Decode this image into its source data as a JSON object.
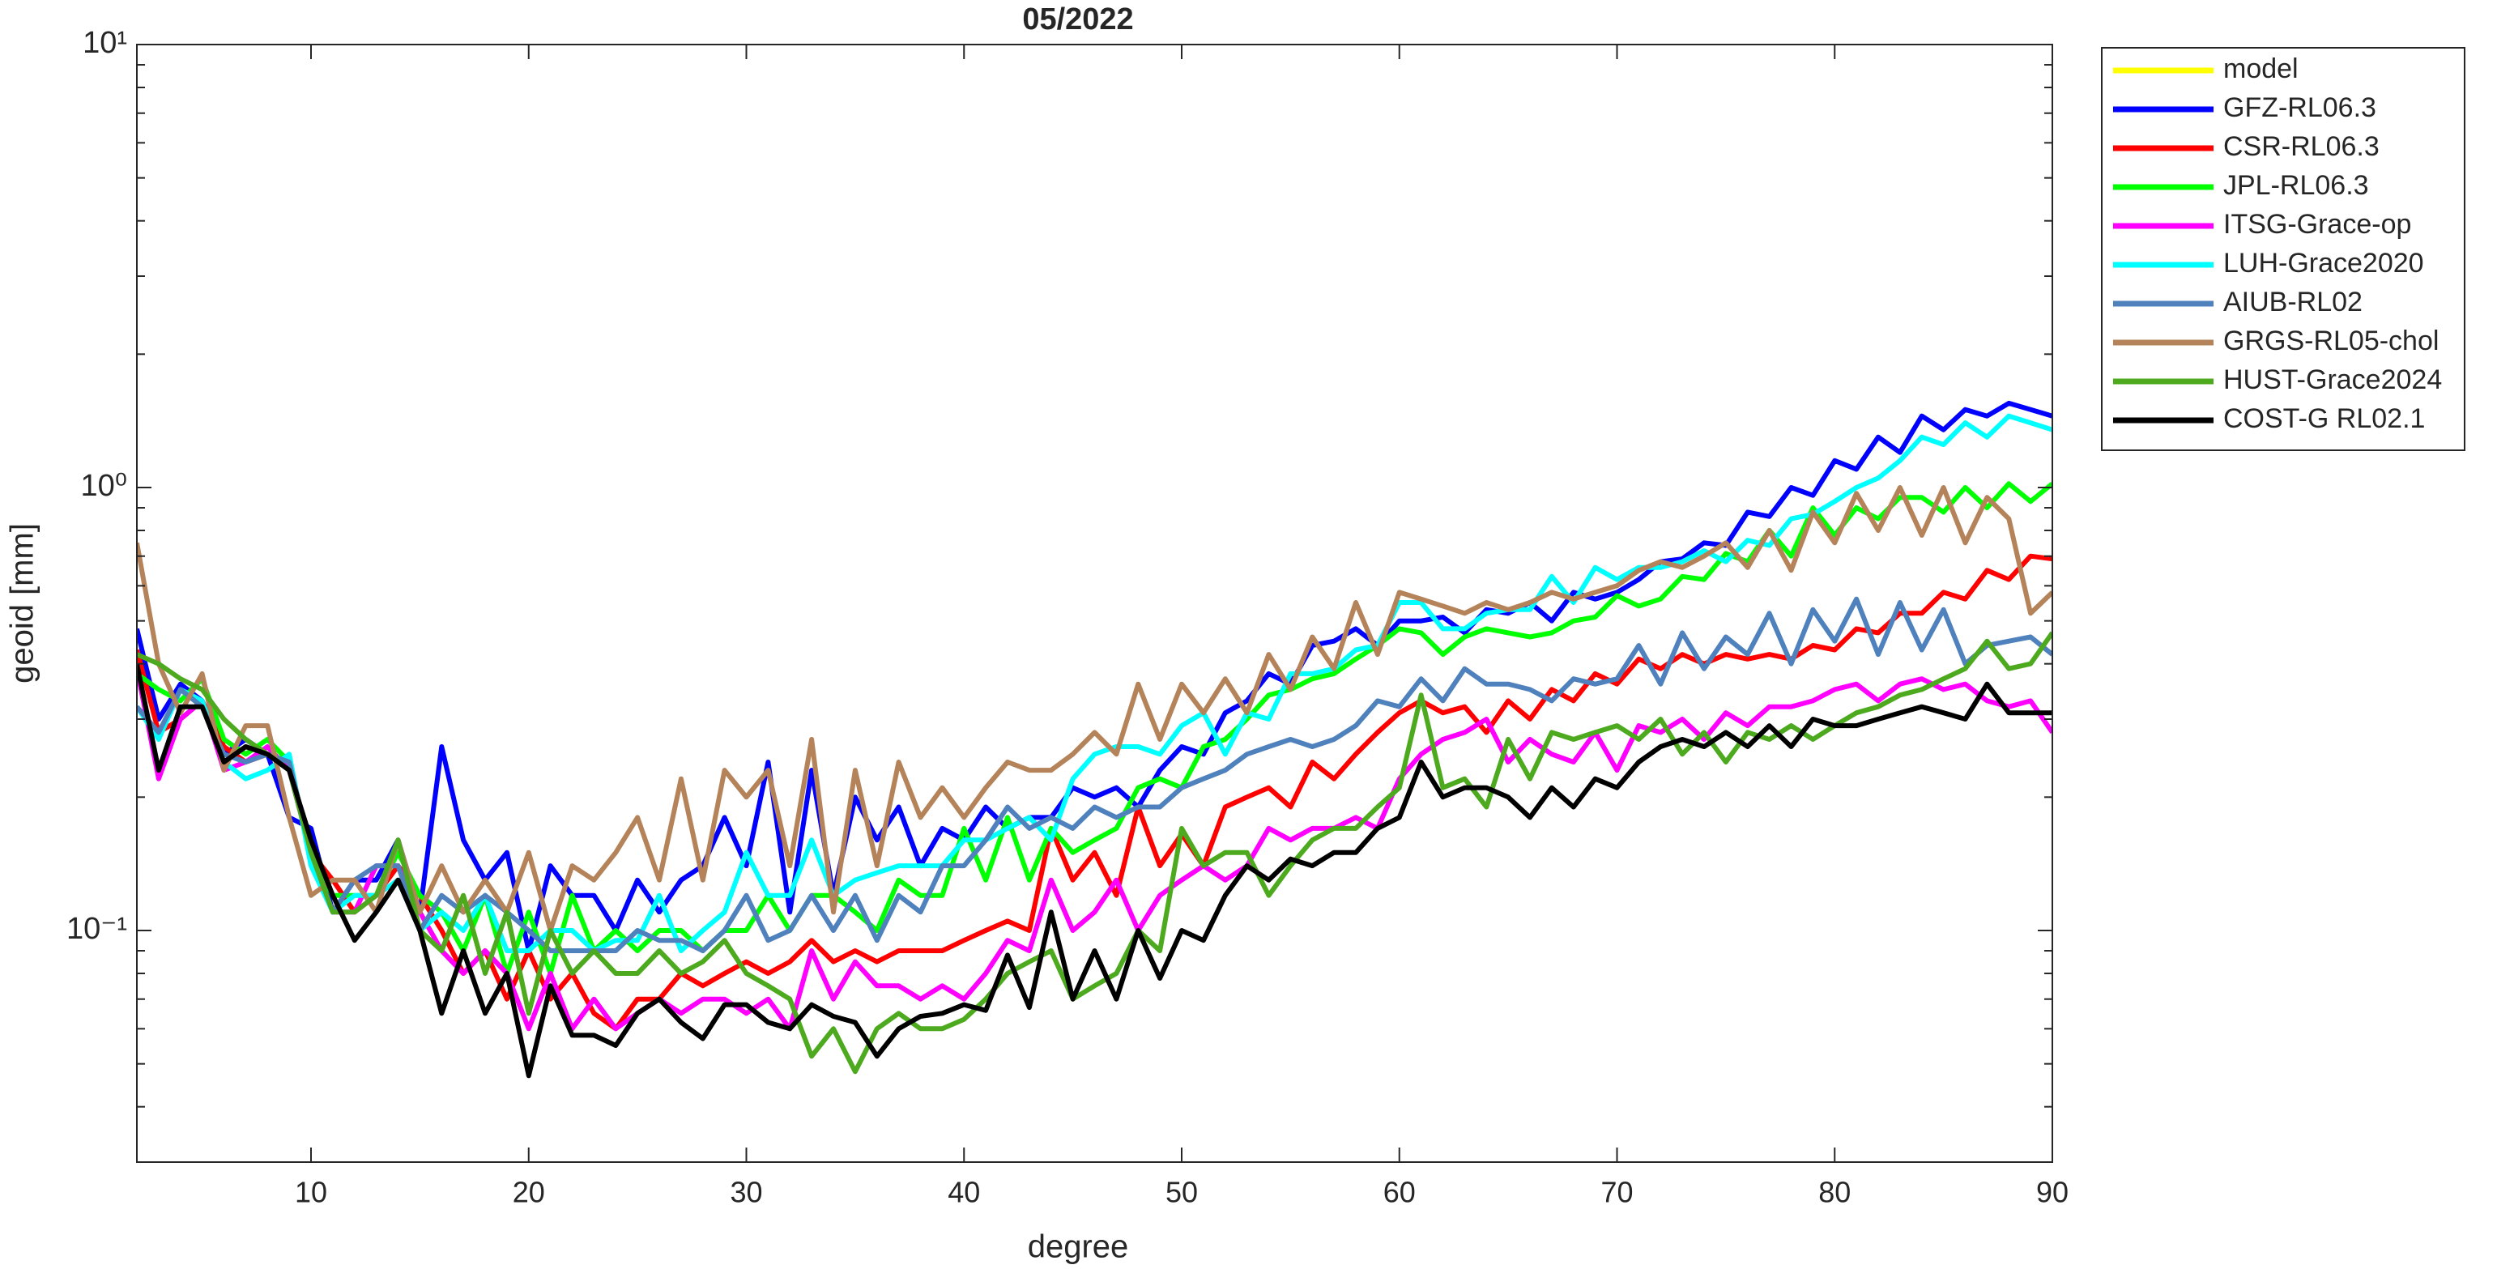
{
  "chart_data": {
    "type": "line",
    "title": "05/2022",
    "xlabel": "degree",
    "ylabel": "geoid [mm]",
    "log_y": true,
    "grid": false,
    "legend": "outside-right",
    "xlim": [
      2,
      90
    ],
    "xticks": [
      10,
      20,
      30,
      40,
      50,
      60,
      70,
      80,
      90
    ],
    "ylim": [
      0.03,
      10
    ],
    "yticks": [
      {
        "value": 0.1,
        "label": "10⁻¹"
      },
      {
        "value": 1,
        "label": "10⁰"
      },
      {
        "value": 10,
        "label": "10¹"
      }
    ],
    "yminorticks": [
      0.04,
      0.05,
      0.06,
      0.07,
      0.08,
      0.09,
      0.2,
      0.3,
      0.4,
      0.5,
      0.6,
      0.7,
      0.8,
      0.9,
      2,
      3,
      4,
      5,
      6,
      7,
      8,
      9
    ],
    "x": [
      2,
      3,
      4,
      5,
      6,
      7,
      8,
      9,
      10,
      11,
      12,
      13,
      14,
      15,
      16,
      17,
      18,
      19,
      20,
      21,
      22,
      23,
      24,
      25,
      26,
      27,
      28,
      29,
      30,
      31,
      32,
      33,
      34,
      35,
      36,
      37,
      38,
      39,
      40,
      41,
      42,
      43,
      44,
      45,
      46,
      47,
      48,
      49,
      50,
      51,
      52,
      53,
      54,
      55,
      56,
      57,
      58,
      59,
      60,
      61,
      62,
      63,
      64,
      65,
      66,
      67,
      68,
      69,
      70,
      71,
      72,
      73,
      74,
      75,
      76,
      77,
      78,
      79,
      80,
      81,
      82,
      83,
      84,
      85,
      86,
      87,
      88,
      89,
      90
    ],
    "series": [
      {
        "name": "model",
        "color": "#ffff00",
        "values": [
          null,
          null,
          null,
          null,
          null,
          null,
          null,
          null,
          null,
          null,
          null,
          null,
          null,
          null,
          null,
          null,
          null,
          null,
          null,
          null,
          null,
          null,
          null,
          null,
          null,
          null,
          null,
          null,
          null,
          null,
          null,
          null,
          null,
          null,
          null,
          null,
          null,
          null,
          null,
          null,
          null,
          null,
          null,
          null,
          null,
          null,
          null,
          null,
          null,
          null,
          null,
          null,
          null,
          null,
          null,
          null,
          null,
          null,
          null,
          null,
          null,
          null,
          null,
          null,
          null,
          null,
          null,
          null,
          null,
          null,
          null,
          null,
          null,
          null,
          null,
          null,
          null,
          null,
          null,
          null,
          null,
          null,
          null,
          null,
          null,
          null,
          null,
          null,
          null
        ]
      },
      {
        "name": "GFZ-RL06.3",
        "color": "#0000ff",
        "values": [
          0.48,
          0.3,
          0.36,
          0.33,
          0.25,
          0.27,
          0.25,
          0.18,
          0.17,
          0.11,
          0.13,
          0.13,
          0.16,
          0.11,
          0.26,
          0.16,
          0.13,
          0.15,
          0.09,
          0.14,
          0.12,
          0.12,
          0.1,
          0.13,
          0.11,
          0.13,
          0.14,
          0.18,
          0.14,
          0.24,
          0.11,
          0.23,
          0.12,
          0.2,
          0.16,
          0.19,
          0.14,
          0.17,
          0.16,
          0.19,
          0.17,
          0.18,
          0.18,
          0.21,
          0.2,
          0.21,
          0.19,
          0.23,
          0.26,
          0.25,
          0.31,
          0.33,
          0.38,
          0.36,
          0.44,
          0.45,
          0.48,
          0.44,
          0.5,
          0.5,
          0.51,
          0.47,
          0.53,
          0.52,
          0.55,
          0.5,
          0.58,
          0.56,
          0.58,
          0.62,
          0.68,
          0.69,
          0.75,
          0.74,
          0.88,
          0.86,
          1.0,
          0.96,
          1.15,
          1.1,
          1.3,
          1.2,
          1.45,
          1.35,
          1.5,
          1.45,
          1.55,
          1.5,
          1.45
        ]
      },
      {
        "name": "CSR-RL06.3",
        "color": "#ff0000",
        "values": [
          0.43,
          0.28,
          0.3,
          0.33,
          0.26,
          0.24,
          0.25,
          0.24,
          0.15,
          0.13,
          0.11,
          0.12,
          0.14,
          0.12,
          0.1,
          0.08,
          0.09,
          0.07,
          0.09,
          0.07,
          0.08,
          0.065,
          0.06,
          0.07,
          0.07,
          0.08,
          0.075,
          0.08,
          0.085,
          0.08,
          0.085,
          0.095,
          0.085,
          0.09,
          0.085,
          0.09,
          0.09,
          0.09,
          0.095,
          0.1,
          0.105,
          0.1,
          0.17,
          0.13,
          0.15,
          0.12,
          0.19,
          0.14,
          0.165,
          0.14,
          0.19,
          0.2,
          0.21,
          0.19,
          0.24,
          0.22,
          0.25,
          0.28,
          0.31,
          0.33,
          0.31,
          0.32,
          0.28,
          0.33,
          0.3,
          0.35,
          0.33,
          0.38,
          0.36,
          0.41,
          0.39,
          0.42,
          0.4,
          0.42,
          0.41,
          0.42,
          0.41,
          0.44,
          0.43,
          0.48,
          0.47,
          0.52,
          0.52,
          0.58,
          0.56,
          0.65,
          0.62,
          0.7,
          0.69
        ]
      },
      {
        "name": "JPL-RL06.3",
        "color": "#00ff00",
        "values": [
          0.38,
          0.35,
          0.33,
          0.37,
          0.27,
          0.25,
          0.27,
          0.24,
          0.15,
          0.12,
          0.12,
          0.12,
          0.15,
          0.12,
          0.11,
          0.09,
          0.12,
          0.08,
          0.11,
          0.08,
          0.12,
          0.09,
          0.1,
          0.09,
          0.1,
          0.1,
          0.09,
          0.1,
          0.1,
          0.12,
          0.1,
          0.12,
          0.12,
          0.11,
          0.1,
          0.13,
          0.12,
          0.12,
          0.17,
          0.13,
          0.18,
          0.13,
          0.17,
          0.15,
          0.16,
          0.17,
          0.21,
          0.22,
          0.21,
          0.26,
          0.27,
          0.3,
          0.34,
          0.35,
          0.37,
          0.38,
          0.41,
          0.44,
          0.48,
          0.47,
          0.42,
          0.46,
          0.48,
          0.47,
          0.46,
          0.47,
          0.5,
          0.51,
          0.57,
          0.54,
          0.56,
          0.63,
          0.62,
          0.71,
          0.68,
          0.8,
          0.7,
          0.9,
          0.78,
          0.9,
          0.85,
          0.95,
          0.95,
          0.88,
          1.0,
          0.9,
          1.02,
          0.93,
          1.02
        ]
      },
      {
        "name": "ITSG-Grace-op",
        "color": "#ff00ff",
        "values": [
          0.39,
          0.22,
          0.3,
          0.33,
          0.23,
          0.24,
          0.26,
          0.23,
          0.15,
          0.11,
          0.11,
          0.14,
          0.14,
          0.11,
          0.09,
          0.08,
          0.09,
          0.08,
          0.06,
          0.08,
          0.06,
          0.07,
          0.06,
          0.065,
          0.07,
          0.065,
          0.07,
          0.07,
          0.065,
          0.07,
          0.06,
          0.09,
          0.07,
          0.085,
          0.075,
          0.075,
          0.07,
          0.075,
          0.07,
          0.08,
          0.095,
          0.09,
          0.13,
          0.1,
          0.11,
          0.13,
          0.1,
          0.12,
          0.13,
          0.14,
          0.13,
          0.14,
          0.17,
          0.16,
          0.17,
          0.17,
          0.18,
          0.17,
          0.22,
          0.25,
          0.27,
          0.28,
          0.3,
          0.24,
          0.27,
          0.25,
          0.24,
          0.28,
          0.23,
          0.29,
          0.28,
          0.3,
          0.27,
          0.31,
          0.29,
          0.32,
          0.32,
          0.33,
          0.35,
          0.36,
          0.33,
          0.36,
          0.37,
          0.35,
          0.36,
          0.33,
          0.32,
          0.33,
          0.28
        ]
      },
      {
        "name": "LUH-Grace2020",
        "color": "#00ffff",
        "values": [
          0.32,
          0.27,
          0.35,
          0.33,
          0.24,
          0.22,
          0.23,
          0.25,
          0.14,
          0.11,
          0.12,
          0.12,
          0.13,
          0.1,
          0.11,
          0.1,
          0.12,
          0.09,
          0.09,
          0.1,
          0.1,
          0.09,
          0.095,
          0.095,
          0.12,
          0.09,
          0.1,
          0.11,
          0.15,
          0.12,
          0.12,
          0.16,
          0.12,
          0.13,
          0.135,
          0.14,
          0.14,
          0.14,
          0.16,
          0.16,
          0.17,
          0.18,
          0.16,
          0.22,
          0.25,
          0.26,
          0.26,
          0.25,
          0.29,
          0.31,
          0.25,
          0.31,
          0.3,
          0.38,
          0.38,
          0.39,
          0.43,
          0.44,
          0.55,
          0.55,
          0.48,
          0.48,
          0.52,
          0.53,
          0.53,
          0.63,
          0.55,
          0.66,
          0.62,
          0.66,
          0.66,
          0.68,
          0.72,
          0.68,
          0.76,
          0.74,
          0.85,
          0.87,
          0.93,
          1.0,
          1.05,
          1.15,
          1.3,
          1.25,
          1.4,
          1.3,
          1.45,
          1.4,
          1.35
        ]
      },
      {
        "name": "AIUB-RL02",
        "color": "#4f81bd",
        "values": [
          0.32,
          0.28,
          0.35,
          0.32,
          0.25,
          0.24,
          0.25,
          0.24,
          0.15,
          0.11,
          0.13,
          0.14,
          0.14,
          0.1,
          0.12,
          0.11,
          0.12,
          0.11,
          0.1,
          0.09,
          0.09,
          0.09,
          0.09,
          0.1,
          0.095,
          0.095,
          0.09,
          0.1,
          0.12,
          0.095,
          0.1,
          0.12,
          0.1,
          0.12,
          0.095,
          0.12,
          0.11,
          0.14,
          0.14,
          0.16,
          0.19,
          0.17,
          0.18,
          0.17,
          0.19,
          0.18,
          0.19,
          0.19,
          0.21,
          0.22,
          0.23,
          0.25,
          0.26,
          0.27,
          0.26,
          0.27,
          0.29,
          0.33,
          0.32,
          0.37,
          0.33,
          0.39,
          0.36,
          0.36,
          0.35,
          0.33,
          0.37,
          0.36,
          0.37,
          0.44,
          0.36,
          0.47,
          0.39,
          0.46,
          0.42,
          0.52,
          0.4,
          0.53,
          0.45,
          0.56,
          0.42,
          0.55,
          0.43,
          0.53,
          0.4,
          0.44,
          0.45,
          0.46,
          0.42
        ]
      },
      {
        "name": "GRGS-RL05-chol",
        "color": "#b5835a",
        "values": [
          0.75,
          0.4,
          0.31,
          0.38,
          0.23,
          0.29,
          0.29,
          0.18,
          0.12,
          0.13,
          0.13,
          0.11,
          0.16,
          0.11,
          0.14,
          0.11,
          0.13,
          0.11,
          0.15,
          0.1,
          0.14,
          0.13,
          0.15,
          0.18,
          0.13,
          0.22,
          0.13,
          0.23,
          0.2,
          0.23,
          0.14,
          0.27,
          0.11,
          0.23,
          0.14,
          0.24,
          0.18,
          0.21,
          0.18,
          0.21,
          0.24,
          0.23,
          0.23,
          0.25,
          0.28,
          0.25,
          0.36,
          0.27,
          0.36,
          0.31,
          0.37,
          0.31,
          0.42,
          0.35,
          0.46,
          0.39,
          0.55,
          0.42,
          0.58,
          0.56,
          0.54,
          0.52,
          0.55,
          0.53,
          0.55,
          0.58,
          0.56,
          0.58,
          0.6,
          0.65,
          0.68,
          0.66,
          0.7,
          0.75,
          0.66,
          0.8,
          0.65,
          0.88,
          0.75,
          0.97,
          0.8,
          1.0,
          0.78,
          1.0,
          0.75,
          0.95,
          0.85,
          0.52,
          0.58
        ]
      },
      {
        "name": "HUST-Grace2024",
        "color": "#4daa1e",
        "values": [
          0.42,
          0.4,
          0.37,
          0.35,
          0.3,
          0.27,
          0.25,
          0.23,
          0.15,
          0.11,
          0.11,
          0.12,
          0.16,
          0.1,
          0.09,
          0.12,
          0.08,
          0.11,
          0.065,
          0.1,
          0.08,
          0.09,
          0.08,
          0.08,
          0.09,
          0.08,
          0.085,
          0.095,
          0.08,
          0.075,
          0.07,
          0.052,
          0.06,
          0.048,
          0.06,
          0.065,
          0.06,
          0.06,
          0.063,
          0.07,
          0.08,
          0.085,
          0.09,
          0.07,
          0.075,
          0.08,
          0.1,
          0.09,
          0.17,
          0.14,
          0.15,
          0.15,
          0.12,
          0.14,
          0.16,
          0.17,
          0.17,
          0.19,
          0.21,
          0.34,
          0.21,
          0.22,
          0.19,
          0.27,
          0.22,
          0.28,
          0.27,
          0.28,
          0.29,
          0.27,
          0.3,
          0.25,
          0.28,
          0.24,
          0.28,
          0.27,
          0.29,
          0.27,
          0.29,
          0.31,
          0.32,
          0.34,
          0.35,
          0.37,
          0.39,
          0.45,
          0.39,
          0.4,
          0.47
        ]
      },
      {
        "name": "COST-G RL02.1",
        "color": "#000000",
        "values": [
          0.4,
          0.23,
          0.32,
          0.32,
          0.24,
          0.26,
          0.25,
          0.23,
          0.16,
          0.12,
          0.095,
          0.11,
          0.13,
          0.1,
          0.065,
          0.09,
          0.065,
          0.08,
          0.047,
          0.075,
          0.058,
          0.058,
          0.055,
          0.065,
          0.07,
          0.062,
          0.057,
          0.068,
          0.068,
          0.062,
          0.06,
          0.068,
          0.064,
          0.062,
          0.052,
          0.06,
          0.064,
          0.065,
          0.068,
          0.066,
          0.088,
          0.067,
          0.11,
          0.07,
          0.09,
          0.07,
          0.1,
          0.078,
          0.1,
          0.095,
          0.12,
          0.14,
          0.13,
          0.145,
          0.14,
          0.15,
          0.15,
          0.17,
          0.18,
          0.24,
          0.2,
          0.21,
          0.21,
          0.2,
          0.18,
          0.21,
          0.19,
          0.22,
          0.21,
          0.24,
          0.26,
          0.27,
          0.26,
          0.28,
          0.26,
          0.29,
          0.26,
          0.3,
          0.29,
          0.29,
          0.3,
          0.31,
          0.32,
          0.31,
          0.3,
          0.36,
          0.31,
          0.31,
          0.31
        ]
      }
    ]
  }
}
